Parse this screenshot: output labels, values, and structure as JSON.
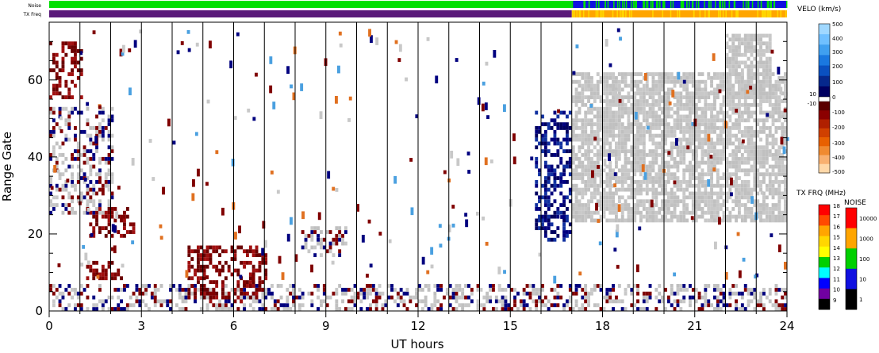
{
  "chart_data": {
    "type": "heatmap",
    "xlabel": "UT hours",
    "ylabel": "Range Gate",
    "x_ticks": [
      "0",
      "3",
      "6",
      "9",
      "12",
      "15",
      "18",
      "21",
      "24"
    ],
    "y_ticks": [
      "0",
      "20",
      "40",
      "60"
    ],
    "xlim": [
      0,
      24
    ],
    "ylim": [
      0,
      75
    ],
    "grid": "vertical lines every hour",
    "strip_labels": {
      "noise": "Noise",
      "txfreq": "TX Freq"
    },
    "colors": {
      "velocity_negative": "#800000",
      "velocity_positive": "#00007f",
      "ground_scatter": "#c8c8c8",
      "noise_strip_low": "#00e000",
      "noise_strip_high": "#1010e0",
      "txfreq_strip_low": "#5a1a7a",
      "txfreq_strip_high": "#ffa500"
    },
    "strips": {
      "noise": [
        {
          "from": 0,
          "to": 17,
          "level": "100"
        },
        {
          "from": 17,
          "to": 24,
          "level": "10"
        }
      ],
      "txfreq": [
        {
          "from": 0,
          "to": 17,
          "mhz": "10"
        },
        {
          "from": 17,
          "to": 24,
          "mhz": "15-16"
        }
      ]
    },
    "regions": [
      {
        "name": "early-scatter",
        "x": [
          0,
          2.1
        ],
        "y": [
          25,
          53
        ],
        "type": "mixed"
      },
      {
        "name": "early-high",
        "x": [
          0,
          1.0
        ],
        "y": [
          55,
          70
        ],
        "type": "velocity_negative"
      },
      {
        "name": "patch-25",
        "x": [
          1.3,
          2.8
        ],
        "y": [
          19,
          27
        ],
        "type": "velocity_negative"
      },
      {
        "name": "patch-11",
        "x": [
          1.2,
          2.4
        ],
        "y": [
          8,
          13
        ],
        "type": "velocity_negative"
      },
      {
        "name": "near-range",
        "x": [
          0,
          24
        ],
        "y": [
          0,
          7
        ],
        "type": "mixed"
      },
      {
        "name": "ramp",
        "x": [
          4.5,
          7
        ],
        "y": [
          2,
          17
        ],
        "type": "velocity_negative"
      },
      {
        "name": "patch-18",
        "x": [
          8.2,
          9.6
        ],
        "y": [
          14,
          22
        ],
        "type": "mixed"
      },
      {
        "name": "dusk-band",
        "x": [
          15.8,
          17
        ],
        "y": [
          18,
          52
        ],
        "type": "velocity_positive"
      },
      {
        "name": "night-ground-scatter",
        "x": [
          17,
          24
        ],
        "y": [
          23,
          62
        ],
        "type": "ground_scatter"
      },
      {
        "name": "late-high",
        "x": [
          22,
          23.5
        ],
        "y": [
          55,
          72
        ],
        "type": "ground_scatter"
      }
    ],
    "velo_scale": {
      "title": "VELO (km/s)",
      "labels": [
        "500",
        "400",
        "300",
        "200",
        "100",
        "0",
        "10",
        "-10",
        "-100",
        "-200",
        "-300",
        "-400",
        "-500"
      ],
      "colors_top": [
        "#a0d8ff",
        "#70c0ff",
        "#40a0f0",
        "#1a78e0",
        "#0a50c0",
        "#06288c",
        "#000060"
      ],
      "colors_bottom": [
        "#5a0000",
        "#8b0000",
        "#b02000",
        "#d04000",
        "#e86000",
        "#f08a30",
        "#f8b070",
        "#ffd8a8"
      ]
    },
    "txfrq_scale": {
      "title": "TX FRQ (MHz)",
      "labels": [
        "18",
        "17",
        "16",
        "15",
        "14",
        "13",
        "12",
        "11",
        "10",
        "9"
      ],
      "colors": [
        "#ff0000",
        "#ff4a00",
        "#ffa500",
        "#ffd700",
        "#ffff00",
        "#00d000",
        "#00ffff",
        "#0000ff",
        "#7000a0",
        "#000000"
      ]
    },
    "noise_scale": {
      "title": "NOISE",
      "labels": [
        "10000",
        "1000",
        "100",
        "10",
        "1"
      ],
      "colors": [
        "#ff0000",
        "#ffa500",
        "#00d000",
        "#1010e0",
        "#000000"
      ]
    }
  }
}
